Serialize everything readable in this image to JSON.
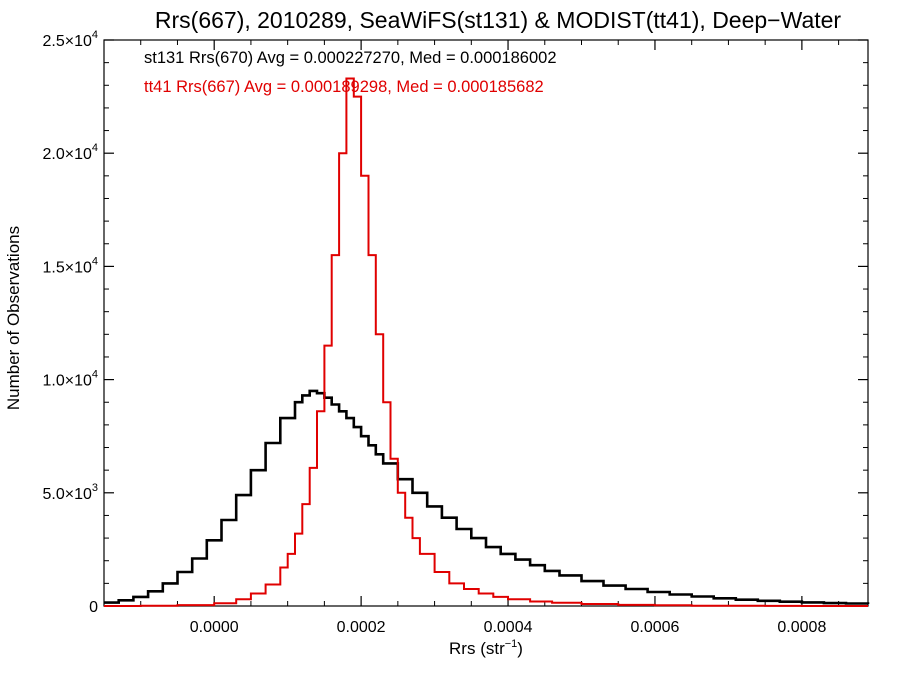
{
  "chart_data": {
    "type": "histogram",
    "title": "Rrs(667), 2010289, SeaWiFS(st131) & MODIST(tt41), Deep−Water",
    "xlabel": "Rrs (str",
    "xlabel_sup": "−1",
    "xlabel_suffix": ")",
    "ylabel": "Number of Observations",
    "xlim": [
      -0.00015,
      0.00089
    ],
    "ylim": [
      0,
      25000
    ],
    "x_ticks": [
      0.0,
      0.0002,
      0.0004,
      0.0006,
      0.0008
    ],
    "x_tick_labels": [
      "0.0000",
      "0.0002",
      "0.0004",
      "0.0006",
      "0.0008"
    ],
    "y_ticks": [
      0,
      5000,
      10000,
      15000,
      20000,
      25000
    ],
    "y_tick_labels": [
      {
        "mant": "0",
        "exp": ""
      },
      {
        "mant": "5.0×10",
        "exp": "3"
      },
      {
        "mant": "1.0×10",
        "exp": "4"
      },
      {
        "mant": "1.5×10",
        "exp": "4"
      },
      {
        "mant": "2.0×10",
        "exp": "4"
      },
      {
        "mant": "2.5×10",
        "exp": "4"
      }
    ],
    "grid": false,
    "legend_position": "top-left",
    "series": [
      {
        "name": "st131 Rrs(670) Avg = 0.000227270, Med = 0.000186002",
        "color": "#000000",
        "x": [
          -0.00015,
          -0.00013,
          -0.00011,
          -9e-05,
          -7e-05,
          -5e-05,
          -3e-05,
          -1e-05,
          1e-05,
          3e-05,
          5e-05,
          7e-05,
          9e-05,
          0.00011,
          0.00012,
          0.00013,
          0.00014,
          0.00015,
          0.00016,
          0.00017,
          0.00018,
          0.00019,
          0.0002,
          0.00021,
          0.00022,
          0.00023,
          0.00025,
          0.00027,
          0.00029,
          0.00031,
          0.00033,
          0.00035,
          0.00037,
          0.00039,
          0.00041,
          0.00043,
          0.00045,
          0.00047,
          0.0005,
          0.00053,
          0.00056,
          0.00059,
          0.00062,
          0.00065,
          0.00068,
          0.00071,
          0.00074,
          0.00077,
          0.0008,
          0.00083,
          0.00086,
          0.00089
        ],
        "y": [
          150,
          250,
          400,
          650,
          1000,
          1500,
          2100,
          2900,
          3800,
          4900,
          6000,
          7200,
          8300,
          9000,
          9300,
          9500,
          9400,
          9200,
          8900,
          8600,
          8300,
          7900,
          7500,
          7100,
          6700,
          6300,
          5600,
          5000,
          4400,
          3900,
          3400,
          3000,
          2600,
          2300,
          2050,
          1800,
          1550,
          1350,
          1100,
          900,
          750,
          620,
          510,
          420,
          340,
          280,
          230,
          190,
          160,
          130,
          110,
          90
        ]
      },
      {
        "name": "tt41 Rrs(667) Avg = 0.000189298, Med = 0.000185682",
        "color": "#e00000",
        "x": [
          -0.00015,
          -0.0001,
          -5e-05,
          0.0,
          3e-05,
          5e-05,
          7e-05,
          9e-05,
          0.0001,
          0.00011,
          0.00012,
          0.00013,
          0.00014,
          0.00015,
          0.00016,
          0.00017,
          0.00018,
          0.00019,
          0.0002,
          0.00021,
          0.00022,
          0.00023,
          0.00024,
          0.00025,
          0.00026,
          0.00027,
          0.00028,
          0.0003,
          0.00032,
          0.00034,
          0.00036,
          0.00038,
          0.0004,
          0.00043,
          0.00046,
          0.0005,
          0.00055,
          0.0006,
          0.00065,
          0.0007,
          0.00075,
          0.0008,
          0.00089
        ],
        "y": [
          0,
          10,
          40,
          120,
          300,
          550,
          950,
          1700,
          2300,
          3200,
          4500,
          6100,
          8600,
          11500,
          15500,
          20000,
          23300,
          22500,
          19000,
          15500,
          12000,
          9000,
          6500,
          5000,
          3900,
          3000,
          2300,
          1500,
          1000,
          750,
          550,
          400,
          300,
          200,
          140,
          90,
          50,
          30,
          15,
          8,
          4,
          2,
          0
        ]
      }
    ]
  }
}
